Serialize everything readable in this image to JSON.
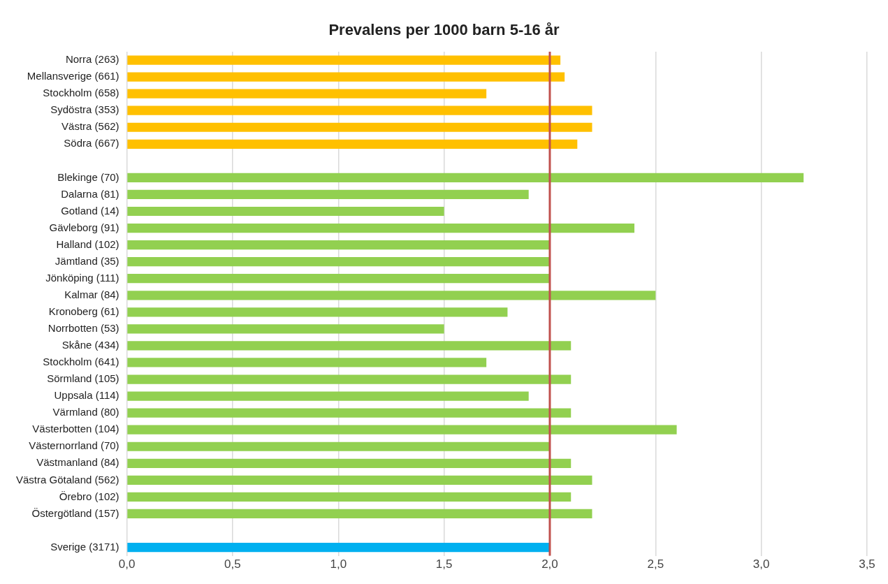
{
  "chart_data": {
    "type": "bar",
    "orientation": "horizontal",
    "title": "Prevalens per 1000 barn 5-16 år",
    "categories": [
      "Norra (263)",
      "Mellansverige (661)",
      "Stockholm (658)",
      "Sydöstra (353)",
      "Västra (562)",
      "Södra (667)",
      null,
      "Blekinge (70)",
      "Dalarna (81)",
      "Gotland (14)",
      "Gävleborg (91)",
      "Halland (102)",
      "Jämtland (35)",
      "Jönköping (111)",
      "Kalmar (84)",
      "Kronoberg (61)",
      "Norrbotten (53)",
      "Skåne (434)",
      "Stockholm (641)",
      "Sörmland (105)",
      "Uppsala (114)",
      "Värmland (80)",
      "Västerbotten (104)",
      "Västernorrland (70)",
      "Västmanland (84)",
      "Västra Götaland (562)",
      "Örebro (102)",
      "Östergötland (157)",
      null,
      "Sverige (3171)"
    ],
    "values": [
      2.05,
      2.07,
      1.7,
      2.2,
      2.2,
      2.13,
      null,
      3.2,
      1.9,
      1.5,
      2.4,
      2.0,
      2.0,
      2.0,
      2.5,
      1.8,
      1.5,
      2.1,
      1.7,
      2.1,
      1.9,
      2.1,
      2.6,
      2.0,
      2.1,
      2.2,
      2.1,
      2.2,
      null,
      2.0
    ],
    "colors": [
      "#ffc000",
      "#ffc000",
      "#ffc000",
      "#ffc000",
      "#ffc000",
      "#ffc000",
      "#ffc000",
      "#92d050",
      "#92d050",
      "#92d050",
      "#92d050",
      "#92d050",
      "#92d050",
      "#92d050",
      "#92d050",
      "#92d050",
      "#92d050",
      "#92d050",
      "#92d050",
      "#92d050",
      "#92d050",
      "#92d050",
      "#92d050",
      "#92d050",
      "#92d050",
      "#92d050",
      "#92d050",
      "#92d050",
      "#92d050",
      "#00b0f0"
    ],
    "xlim": [
      0,
      3.5
    ],
    "xticks": [
      {
        "value": 0,
        "label": "0,0"
      },
      {
        "value": 0.5,
        "label": "0,5"
      },
      {
        "value": 1,
        "label": "1,0"
      },
      {
        "value": 1.5,
        "label": "1,5"
      },
      {
        "value": 2,
        "label": "2,0"
      },
      {
        "value": 2.5,
        "label": "2,5"
      },
      {
        "value": 3,
        "label": "3,0"
      },
      {
        "value": 3.5,
        "label": "3,5"
      }
    ],
    "grid": "x",
    "legend": false,
    "ref_lines": [
      {
        "axis": "x",
        "value": 2.0,
        "label": null,
        "color": "#c0504d"
      }
    ]
  }
}
